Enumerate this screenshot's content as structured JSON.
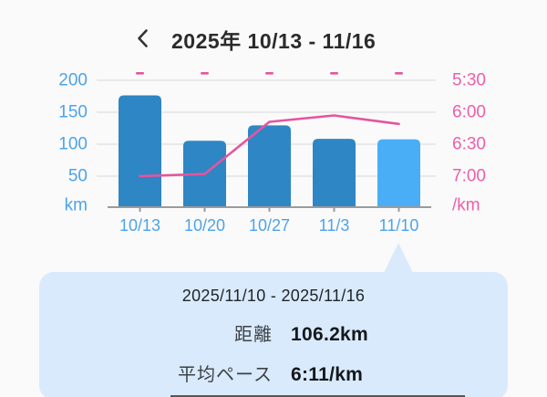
{
  "header": {
    "back_icon": "chevron-left",
    "title": "2025年 10/13 - 11/16"
  },
  "chart_data": {
    "type": "bar",
    "categories": [
      "10/13",
      "10/20",
      "10/27",
      "11/3",
      "11/10"
    ],
    "series": [
      {
        "name": "距離 (km)",
        "type": "bar",
        "values": [
          175,
          104,
          128,
          107,
          106.2
        ]
      },
      {
        "name": "平均ペース (/km)",
        "type": "line",
        "values": [
          "7:00",
          "6:58",
          "6:09",
          "6:03",
          "6:11"
        ]
      }
    ],
    "left_axis": {
      "ticks": [
        "200",
        "150",
        "100",
        "50"
      ],
      "unit": "km",
      "min": 0,
      "max": 200
    },
    "right_axis": {
      "ticks": [
        "5:30",
        "6:00",
        "6:30",
        "7:00"
      ],
      "unit": "/km",
      "top": "5:30",
      "bottom": "7:00"
    },
    "top_markers": [
      "-",
      "-",
      "-",
      "-",
      "-"
    ],
    "selected_index": 4,
    "grid": true,
    "legend_position": "none"
  },
  "colors": {
    "bar": "#2e86c4",
    "bar_selected": "#4aaef6",
    "line": "#e5559f",
    "left_axis": "#4da3ea",
    "right_axis": "#ee5fa7",
    "grid": "#e3e3e3",
    "axis": "#9b9b9b",
    "title": "#2b2b2b",
    "card_bg": "#d9eafc"
  },
  "tooltip": {
    "date_range": "2025/11/10 - 2025/11/16",
    "rows": [
      {
        "label": "距離",
        "value": "106.2km"
      },
      {
        "label": "平均ペース",
        "value": "6:11/km"
      }
    ]
  }
}
